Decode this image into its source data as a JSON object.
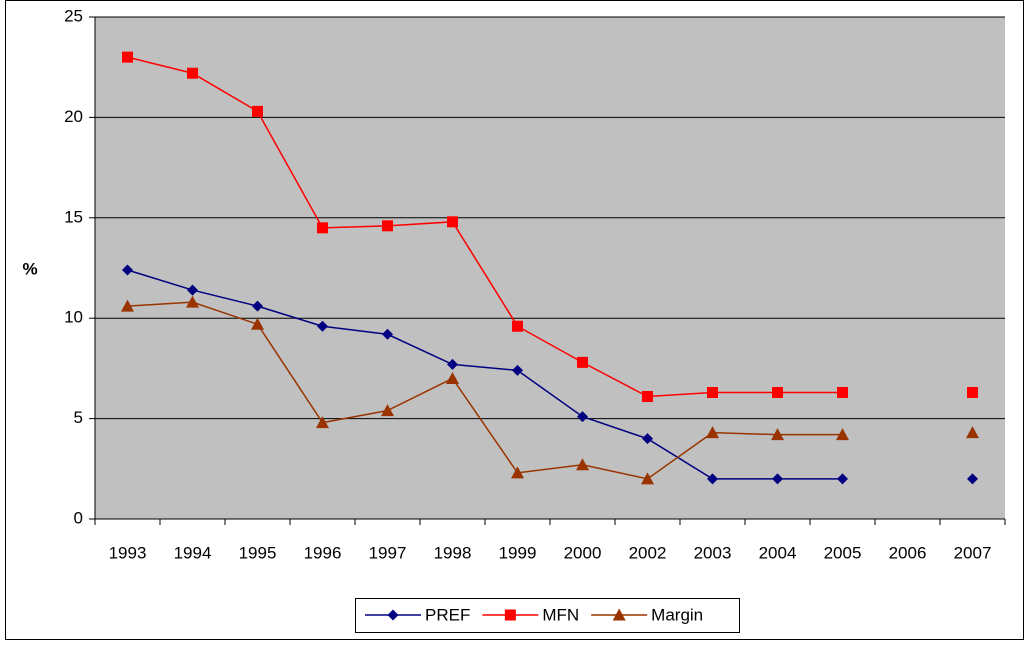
{
  "chart_data": {
    "type": "line",
    "ylabel": "%",
    "categories": [
      "1993",
      "1994",
      "1995",
      "1996",
      "1997",
      "1998",
      "1999",
      "2000",
      "2002",
      "2003",
      "2004",
      "2005",
      "2006",
      "2007"
    ],
    "series": [
      {
        "name": "PREF",
        "color": "#000080",
        "marker": "diamond",
        "values": [
          12.4,
          11.4,
          10.6,
          9.6,
          9.2,
          7.7,
          7.4,
          5.1,
          4.0,
          2.0,
          2.0,
          2.0,
          null,
          2.0
        ]
      },
      {
        "name": "MFN",
        "color": "#ff0000",
        "marker": "square",
        "values": [
          23.0,
          22.2,
          20.3,
          14.5,
          14.6,
          14.8,
          9.6,
          7.8,
          6.1,
          6.3,
          6.3,
          6.3,
          null,
          6.3
        ]
      },
      {
        "name": "Margin",
        "color": "#993300",
        "marker": "triangle",
        "values": [
          10.6,
          10.8,
          9.7,
          4.8,
          5.4,
          7.0,
          2.3,
          2.7,
          2.0,
          4.3,
          4.2,
          4.2,
          null,
          4.3
        ]
      }
    ],
    "ylim": [
      0,
      25
    ],
    "yticks": [
      0,
      5,
      10,
      15,
      20,
      25
    ],
    "grid": true,
    "legend": "bottom"
  }
}
